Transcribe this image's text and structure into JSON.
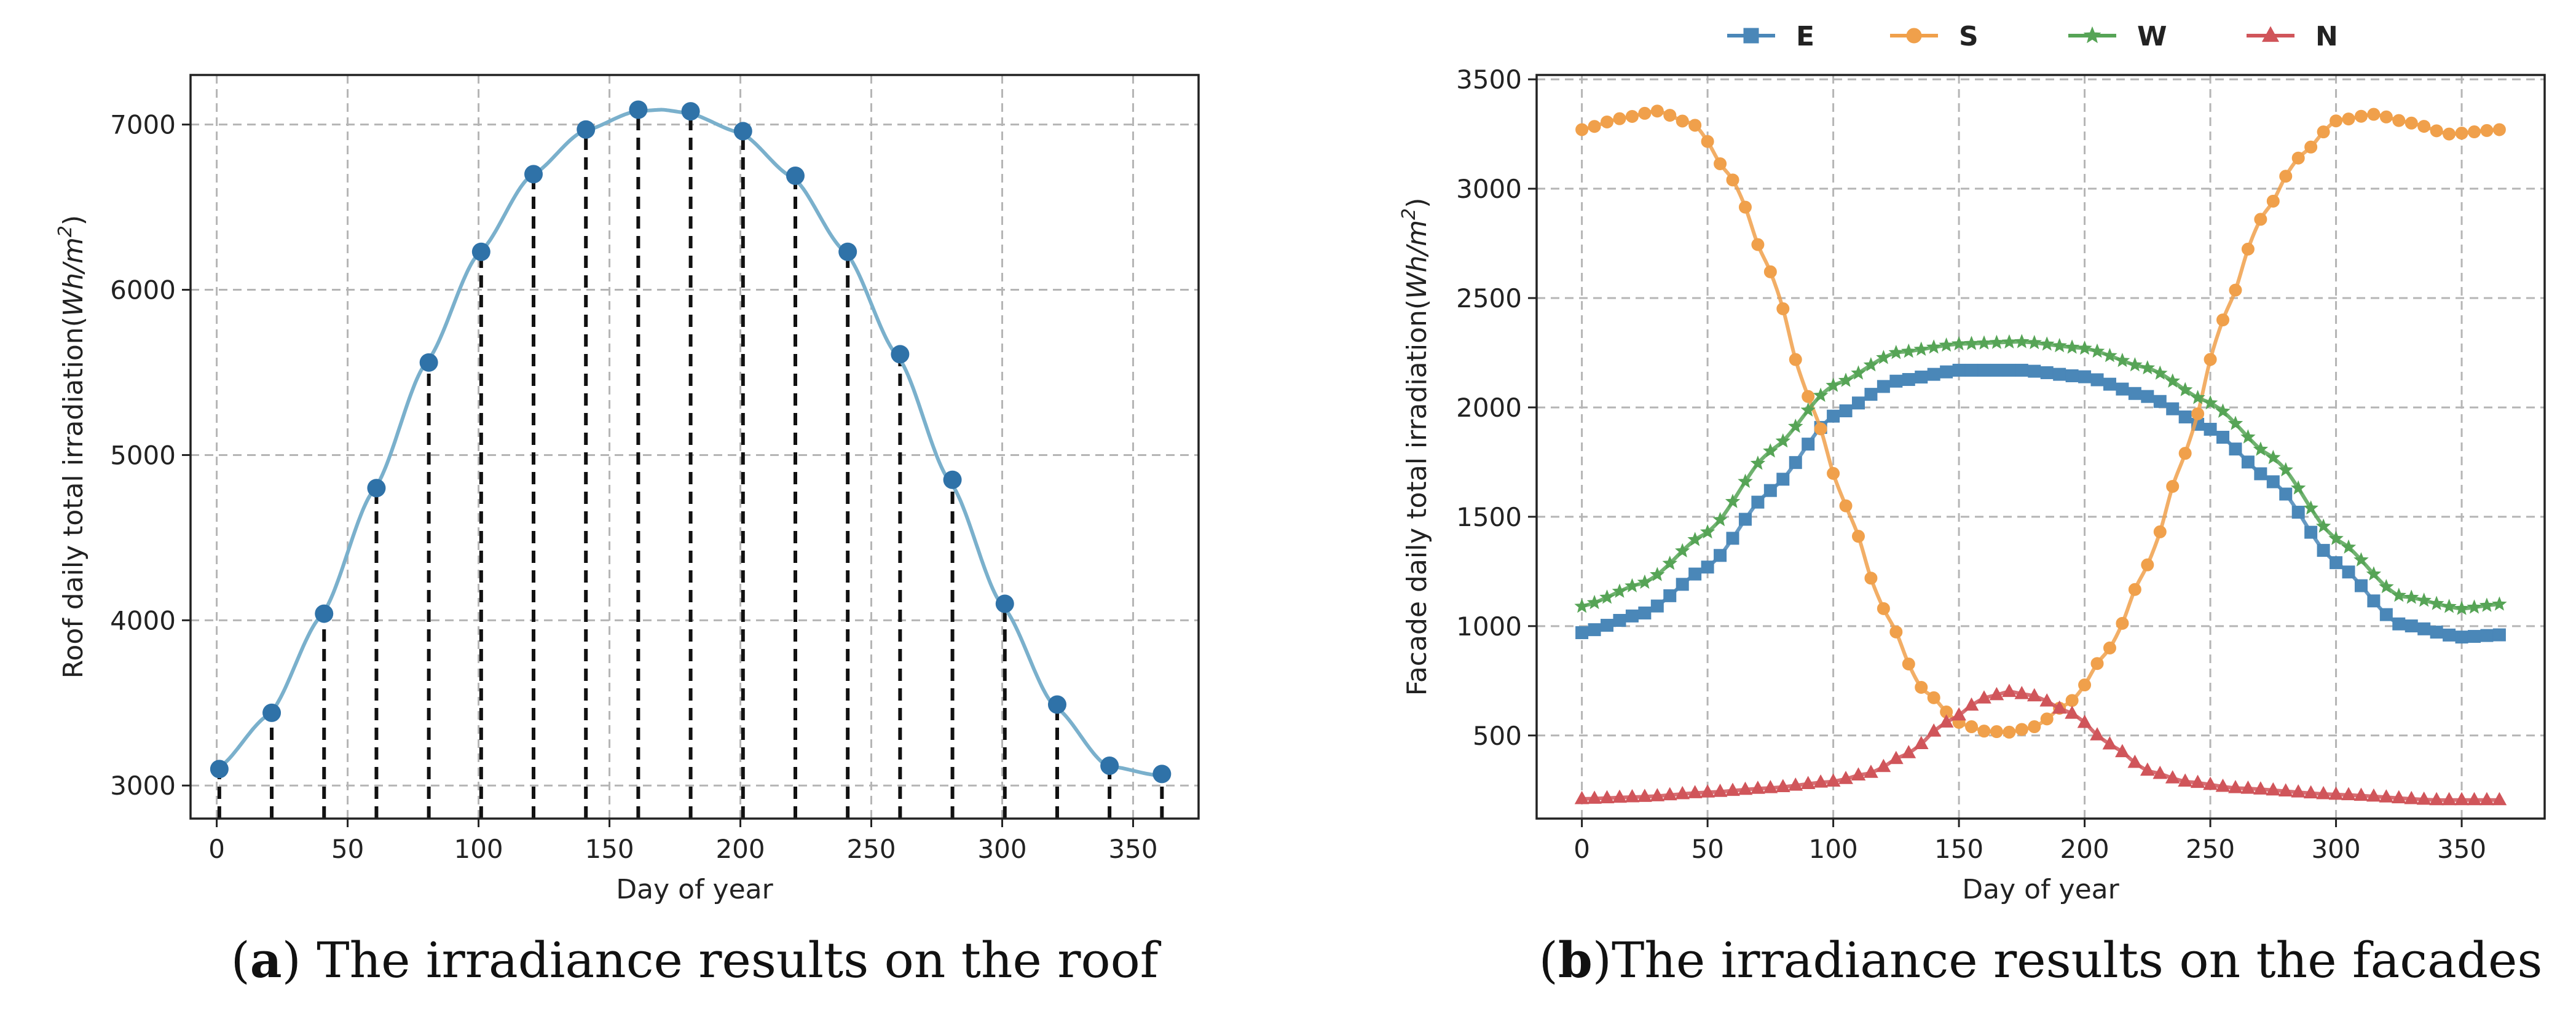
{
  "chart_data": [
    {
      "type": "scatter",
      "panel": "a",
      "caption": {
        "letter": "a",
        "open": "(",
        "close": ")",
        "text": " The irradiance results on the roof"
      },
      "title": "",
      "xlabel": "Day of year",
      "ylabel": "Roof daily total irradiation(Wh/m²)",
      "ylabel_parts": {
        "main": "Roof daily total irradiation(",
        "unit": "Wh/m",
        "sup": "2",
        "close": ")"
      },
      "xlim": [
        -10,
        375
      ],
      "ylim": [
        2800,
        7300
      ],
      "xticks": [
        0,
        50,
        100,
        150,
        200,
        250,
        300,
        350
      ],
      "yticks": [
        3000,
        4000,
        5000,
        6000,
        7000
      ],
      "grid": true,
      "stems": true,
      "colors": {
        "curve": "#7ab0cc",
        "markers": "#2f72a8",
        "stems": "#111111"
      },
      "curve_nodes": {
        "x": [
          0,
          20,
          40,
          60,
          80,
          100,
          120,
          140,
          160,
          170,
          180,
          200,
          220,
          240,
          260,
          280,
          300,
          320,
          340,
          360
        ],
        "y": [
          3100,
          3430,
          4030,
          4790,
          5560,
          6220,
          6690,
          6960,
          7080,
          7090,
          7070,
          6950,
          6680,
          6230,
          5600,
          4840,
          4090,
          3480,
          3120,
          3060
        ]
      },
      "points": {
        "x": [
          1,
          21,
          41,
          61,
          81,
          101,
          121,
          141,
          161,
          181,
          201,
          221,
          241,
          261,
          281,
          301,
          321,
          341,
          361
        ],
        "y": [
          3100,
          3440,
          4040,
          4800,
          5560,
          6230,
          6700,
          6970,
          7090,
          7080,
          6960,
          6690,
          6230,
          5610,
          4850,
          4100,
          3490,
          3120,
          3070
        ]
      }
    },
    {
      "type": "line",
      "panel": "b",
      "caption": {
        "letter": "b",
        "open": "(",
        "close": ")",
        "text": "The irradiance results on the facades"
      },
      "title": "",
      "xlabel": "Day of year",
      "ylabel": "Facade daily total irradiation(Wh/m²)",
      "ylabel_parts": {
        "main": "Facade daily total irradiation(",
        "unit": "Wh/m",
        "sup": "2",
        "close": ")"
      },
      "xlim": [
        -18,
        383
      ],
      "ylim": [
        120,
        3520
      ],
      "xticks": [
        0,
        50,
        100,
        150,
        200,
        250,
        300,
        350
      ],
      "yticks": [
        500,
        1000,
        1500,
        2000,
        2500,
        3000,
        3500
      ],
      "grid": true,
      "legend_position": "top-center",
      "x_start": 0,
      "x_step": 5,
      "x_end": 365,
      "series": [
        {
          "name": "E",
          "color": "#4a87b8",
          "marker": "square",
          "nodes_x": [
            0,
            25,
            50,
            75,
            100,
            125,
            150,
            175,
            200,
            225,
            250,
            275,
            300,
            325,
            350,
            365
          ],
          "nodes_y": [
            970,
            1060,
            1270,
            1620,
            1960,
            2120,
            2170,
            2170,
            2140,
            2050,
            1900,
            1660,
            1290,
            1010,
            950,
            960
          ]
        },
        {
          "name": "S",
          "color": "#f0a04b",
          "marker": "circle",
          "nodes_x": [
            0,
            15,
            30,
            45,
            60,
            75,
            90,
            105,
            120,
            135,
            150,
            160,
            170,
            180,
            195,
            210,
            225,
            240,
            255,
            270,
            285,
            300,
            315,
            330,
            345,
            365
          ],
          "nodes_y": [
            3270,
            3320,
            3355,
            3290,
            3040,
            2620,
            2050,
            1550,
            1080,
            720,
            560,
            520,
            515,
            540,
            660,
            900,
            1280,
            1790,
            2400,
            2860,
            3140,
            3310,
            3340,
            3300,
            3250,
            3270
          ]
        },
        {
          "name": "W",
          "color": "#56a456",
          "marker": "star",
          "nodes_x": [
            0,
            25,
            50,
            75,
            100,
            125,
            150,
            175,
            200,
            225,
            250,
            275,
            300,
            325,
            350,
            365
          ],
          "nodes_y": [
            1090,
            1200,
            1430,
            1800,
            2100,
            2250,
            2290,
            2300,
            2270,
            2180,
            2020,
            1770,
            1400,
            1140,
            1080,
            1100
          ]
        },
        {
          "name": "N",
          "color": "#d0555a",
          "marker": "triangle",
          "nodes_x": [
            0,
            25,
            50,
            75,
            100,
            115,
            130,
            145,
            160,
            170,
            180,
            195,
            210,
            225,
            240,
            260,
            300,
            340,
            365
          ],
          "nodes_y": [
            210,
            220,
            240,
            260,
            290,
            330,
            420,
            560,
            670,
            700,
            680,
            600,
            460,
            340,
            290,
            260,
            230,
            205,
            205
          ]
        }
      ]
    }
  ]
}
